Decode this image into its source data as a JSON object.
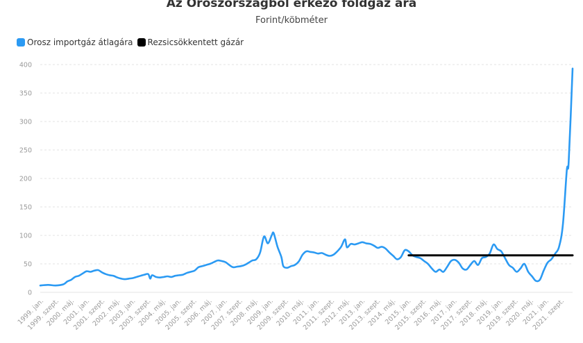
{
  "chart_data": {
    "type": "line",
    "title": "Az Oroszországból érkező földgáz ára",
    "subtitle": "Forint/köbméter",
    "ylim": [
      0,
      400
    ],
    "y_ticks": [
      0,
      50,
      100,
      150,
      200,
      250,
      300,
      350,
      400
    ],
    "x_range": [
      "1999-01",
      "2022-01"
    ],
    "x_tick_labels": [
      "1999. jan.",
      "1999. szept.",
      "2000. máj.",
      "2001. jan.",
      "2001. szept.",
      "2002. máj.",
      "2003. jan.",
      "2003. szept.",
      "2004. máj.",
      "2005. jan.",
      "2005. szept.",
      "2006. máj.",
      "2007. jan.",
      "2007. szept.",
      "2008. máj.",
      "2009. jan.",
      "2009. szept.",
      "2010. máj.",
      "2011. jan.",
      "2011. szept.",
      "2012. máj.",
      "2013. jan.",
      "2013. szept.",
      "2014. máj.",
      "2015. jan.",
      "2015. szept.",
      "2016. máj.",
      "2017. jan.",
      "2017. szept.",
      "2018. máj.",
      "2019. jan.",
      "2019. szept.",
      "2020. máj.",
      "2021. jan.",
      "2021. szept."
    ],
    "grid": true,
    "legend_position": "top-left",
    "series": [
      {
        "name": "Orosz importgáz átlagára",
        "color": "#2b9af3",
        "points": [
          [
            "1999-01",
            12
          ],
          [
            "1999-05",
            13
          ],
          [
            "1999-09",
            12
          ],
          [
            "2000-01",
            14
          ],
          [
            "2000-03",
            19
          ],
          [
            "2000-05",
            22
          ],
          [
            "2000-07",
            27
          ],
          [
            "2000-09",
            29
          ],
          [
            "2000-11",
            33
          ],
          [
            "2001-01",
            37
          ],
          [
            "2001-03",
            36
          ],
          [
            "2001-05",
            38
          ],
          [
            "2001-07",
            39
          ],
          [
            "2001-09",
            35
          ],
          [
            "2001-11",
            32
          ],
          [
            "2002-01",
            30
          ],
          [
            "2002-03",
            29
          ],
          [
            "2002-05",
            26
          ],
          [
            "2002-07",
            24
          ],
          [
            "2002-09",
            23
          ],
          [
            "2002-11",
            24
          ],
          [
            "2003-01",
            25
          ],
          [
            "2003-03",
            27
          ],
          [
            "2003-05",
            29
          ],
          [
            "2003-07",
            31
          ],
          [
            "2003-09",
            32
          ],
          [
            "2003-10",
            24
          ],
          [
            "2003-11",
            30
          ],
          [
            "2004-01",
            27
          ],
          [
            "2004-03",
            26
          ],
          [
            "2004-05",
            27
          ],
          [
            "2004-07",
            28
          ],
          [
            "2004-09",
            27
          ],
          [
            "2004-11",
            29
          ],
          [
            "2005-01",
            30
          ],
          [
            "2005-03",
            31
          ],
          [
            "2005-05",
            34
          ],
          [
            "2005-07",
            36
          ],
          [
            "2005-09",
            38
          ],
          [
            "2005-11",
            44
          ],
          [
            "2006-01",
            46
          ],
          [
            "2006-03",
            48
          ],
          [
            "2006-05",
            50
          ],
          [
            "2006-07",
            53
          ],
          [
            "2006-09",
            56
          ],
          [
            "2006-11",
            55
          ],
          [
            "2007-01",
            53
          ],
          [
            "2007-03",
            48
          ],
          [
            "2007-05",
            44
          ],
          [
            "2007-07",
            45
          ],
          [
            "2007-09",
            46
          ],
          [
            "2007-11",
            48
          ],
          [
            "2008-01",
            52
          ],
          [
            "2008-03",
            56
          ],
          [
            "2008-05",
            58
          ],
          [
            "2008-07",
            70
          ],
          [
            "2008-09",
            98
          ],
          [
            "2008-11",
            86
          ],
          [
            "2009-01",
            100
          ],
          [
            "2009-02",
            104
          ],
          [
            "2009-04",
            80
          ],
          [
            "2009-06",
            62
          ],
          [
            "2009-07",
            46
          ],
          [
            "2009-09",
            43
          ],
          [
            "2009-11",
            46
          ],
          [
            "2010-01",
            48
          ],
          [
            "2010-03",
            54
          ],
          [
            "2010-05",
            66
          ],
          [
            "2010-07",
            72
          ],
          [
            "2010-09",
            71
          ],
          [
            "2010-11",
            70
          ],
          [
            "2011-01",
            68
          ],
          [
            "2011-03",
            69
          ],
          [
            "2011-05",
            66
          ],
          [
            "2011-07",
            64
          ],
          [
            "2011-09",
            66
          ],
          [
            "2011-11",
            72
          ],
          [
            "2012-01",
            80
          ],
          [
            "2012-03",
            93
          ],
          [
            "2012-04",
            79
          ],
          [
            "2012-06",
            85
          ],
          [
            "2012-08",
            84
          ],
          [
            "2012-10",
            86
          ],
          [
            "2012-12",
            88
          ],
          [
            "2013-02",
            86
          ],
          [
            "2013-04",
            85
          ],
          [
            "2013-06",
            82
          ],
          [
            "2013-08",
            78
          ],
          [
            "2013-10",
            80
          ],
          [
            "2013-12",
            77
          ],
          [
            "2014-02",
            70
          ],
          [
            "2014-04",
            64
          ],
          [
            "2014-06",
            58
          ],
          [
            "2014-08",
            62
          ],
          [
            "2014-10",
            74
          ],
          [
            "2014-12",
            72
          ],
          [
            "2015-02",
            65
          ],
          [
            "2015-04",
            62
          ],
          [
            "2015-06",
            60
          ],
          [
            "2015-08",
            55
          ],
          [
            "2015-10",
            50
          ],
          [
            "2015-12",
            42
          ],
          [
            "2016-02",
            36
          ],
          [
            "2016-04",
            40
          ],
          [
            "2016-06",
            36
          ],
          [
            "2016-08",
            45
          ],
          [
            "2016-10",
            55
          ],
          [
            "2016-12",
            57
          ],
          [
            "2017-02",
            52
          ],
          [
            "2017-04",
            42
          ],
          [
            "2017-06",
            40
          ],
          [
            "2017-08",
            48
          ],
          [
            "2017-10",
            55
          ],
          [
            "2017-12",
            48
          ],
          [
            "2018-02",
            60
          ],
          [
            "2018-04",
            62
          ],
          [
            "2018-06",
            68
          ],
          [
            "2018-08",
            84
          ],
          [
            "2018-10",
            76
          ],
          [
            "2018-12",
            72
          ],
          [
            "2019-02",
            60
          ],
          [
            "2019-04",
            48
          ],
          [
            "2019-06",
            43
          ],
          [
            "2019-08",
            36
          ],
          [
            "2019-10",
            42
          ],
          [
            "2019-12",
            50
          ],
          [
            "2020-02",
            36
          ],
          [
            "2020-04",
            28
          ],
          [
            "2020-06",
            20
          ],
          [
            "2020-08",
            22
          ],
          [
            "2020-10",
            38
          ],
          [
            "2020-12",
            52
          ],
          [
            "2021-02",
            58
          ],
          [
            "2021-04",
            68
          ],
          [
            "2021-06",
            80
          ],
          [
            "2021-08",
            120
          ],
          [
            "2021-10",
            215
          ],
          [
            "2021-11",
            230
          ],
          [
            "2022-01",
            393
          ]
        ]
      },
      {
        "name": "Rezsicsökkentett gázár",
        "color": "#000000",
        "points": [
          [
            "2014-12",
            65
          ],
          [
            "2022-01",
            65
          ]
        ]
      }
    ]
  }
}
